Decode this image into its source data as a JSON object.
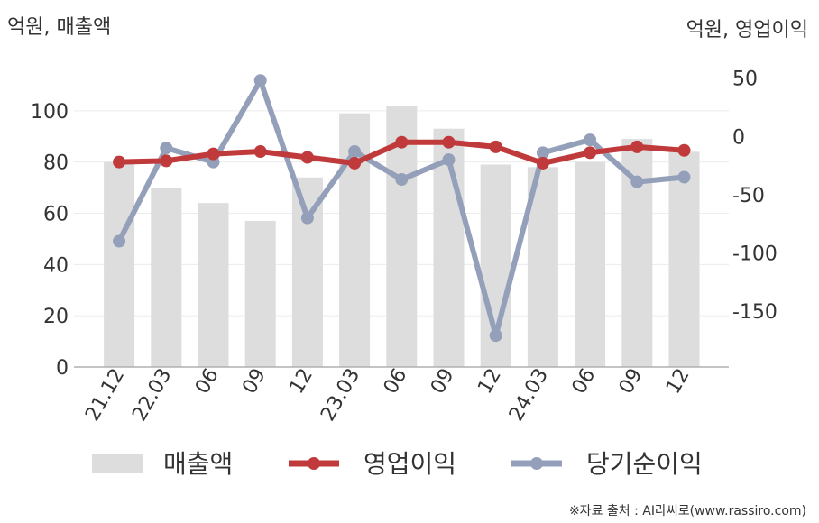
{
  "chart_data": {
    "type": "bar",
    "left_unit": "억원, 매출액",
    "right_unit": "억원, 영업이익",
    "categories": [
      "21.12",
      "22.03",
      "06",
      "09",
      "12",
      "23.03",
      "06",
      "09",
      "12",
      "24.03",
      "06",
      "09",
      "12"
    ],
    "series": [
      {
        "name": "매출액",
        "type": "bar",
        "axis": "left",
        "color": "#dddddd",
        "values": [
          80,
          70,
          64,
          57,
          74,
          99,
          102,
          93,
          79,
          78,
          80,
          89,
          84
        ]
      },
      {
        "name": "영업이익",
        "type": "line",
        "axis": "right",
        "color": "#c0393b",
        "values": [
          -22,
          -21,
          -15,
          -13,
          -18,
          -23,
          -5,
          -5,
          -9,
          -23,
          -14,
          -9,
          -12
        ]
      },
      {
        "name": "당기순이익",
        "type": "line",
        "axis": "right",
        "color": "#94a0b9",
        "values": [
          -90,
          -10,
          -22,
          48,
          -70,
          -13,
          -37,
          -20,
          -171,
          -14,
          -3,
          -39,
          -35
        ]
      }
    ],
    "left_axis": {
      "min": 0,
      "max": 120,
      "ticks": [
        0,
        20,
        40,
        60,
        80,
        100
      ]
    },
    "right_axis": {
      "min": -198,
      "max": 66,
      "ticks": [
        50,
        0,
        -50,
        -100,
        -150
      ]
    },
    "grid": true,
    "legend": "bottom"
  },
  "source": "※자료 출처 : AI라씨로(www.rassiro.com)"
}
